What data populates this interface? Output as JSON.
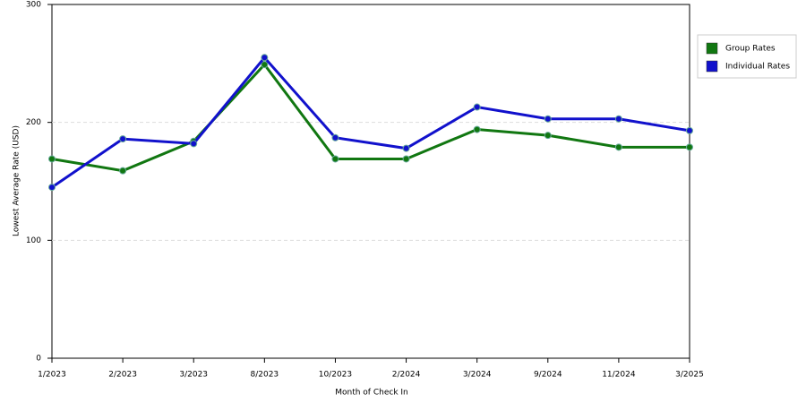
{
  "chart_data": {
    "type": "line",
    "x_label": "Month of Check In",
    "y_label": "Lowest Average Rate (USD)",
    "categories": [
      "1/2023",
      "2/2023",
      "3/2023",
      "8/2023",
      "10/2023",
      "2/2024",
      "3/2024",
      "9/2024",
      "11/2024",
      "3/2025"
    ],
    "series": [
      {
        "name": "Group Rates",
        "color": "#117711",
        "values": [
          169,
          159,
          184,
          249,
          169,
          169,
          194,
          189,
          179,
          179
        ]
      },
      {
        "name": "Individual Rates",
        "color": "#1111cc",
        "values": [
          145,
          186,
          182,
          255,
          187,
          178,
          213,
          203,
          203,
          193
        ]
      }
    ],
    "ylim": [
      0,
      300
    ],
    "yticks": [
      0,
      100,
      200,
      300
    ],
    "grid": true,
    "legend": "right"
  }
}
